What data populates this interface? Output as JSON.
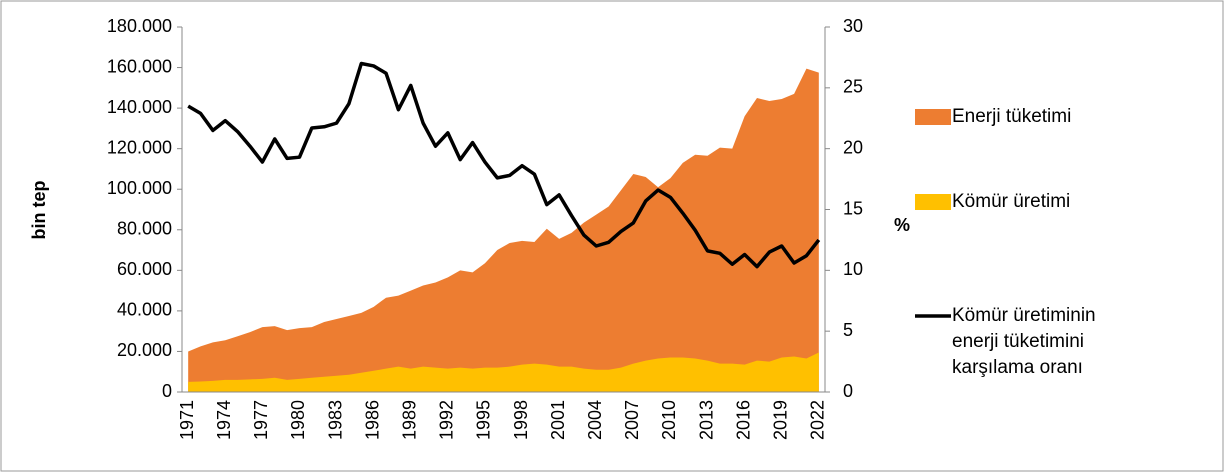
{
  "chart_data": {
    "type": "area-line",
    "ylabel": "bin tep",
    "y2label": "%",
    "categories": [
      "1971",
      null,
      null,
      "1974",
      null,
      null,
      "1977",
      null,
      null,
      "1980",
      null,
      null,
      "1983",
      null,
      null,
      "1986",
      null,
      null,
      "1989",
      null,
      null,
      "1992",
      null,
      null,
      "1995",
      null,
      null,
      "1998",
      null,
      null,
      "2001",
      null,
      null,
      "2004",
      null,
      null,
      "2007",
      null,
      null,
      "2010",
      null,
      null,
      "2013",
      null,
      null,
      "2016",
      null,
      null,
      "2019",
      null,
      null,
      "2022"
    ],
    "series": [
      {
        "name": "Enerji tüketimi",
        "type": "area",
        "color": "#ed7d31",
        "values": [
          20000,
          22500,
          24500,
          25500,
          27500,
          29500,
          32000,
          32500,
          30500,
          31500,
          32000,
          34500,
          36000,
          37500,
          39000,
          42000,
          46500,
          47500,
          50000,
          52500,
          54000,
          56500,
          60000,
          59000,
          63500,
          70000,
          73500,
          74500,
          74000,
          80500,
          75500,
          78500,
          83500,
          87500,
          91500,
          99500,
          107500,
          106000,
          101000,
          105500,
          113000,
          117000,
          116500,
          120500,
          120000,
          136000,
          145000,
          143500,
          144500,
          147000,
          159500,
          157500
        ]
      },
      {
        "name": "Kömür üretimi",
        "type": "area",
        "color": "#ffc000",
        "values": [
          5000,
          5200,
          5500,
          6000,
          6000,
          6200,
          6500,
          7000,
          6000,
          6500,
          7000,
          7500,
          8000,
          8500,
          9500,
          10500,
          11500,
          12500,
          11500,
          12500,
          12000,
          11500,
          12000,
          11500,
          12000,
          12000,
          12500,
          13500,
          14000,
          13500,
          12500,
          12500,
          11500,
          11000,
          11000,
          12000,
          14000,
          15500,
          16500,
          17000,
          17000,
          16500,
          15500,
          14000,
          14000,
          13500,
          15500,
          15000,
          17000,
          17500,
          16500,
          19500
        ]
      },
      {
        "name": "Kömür üretiminin enerji tüketimini karşılama oranı",
        "type": "line",
        "axis": "y2",
        "color": "#000000",
        "values": [
          23.5,
          22.9,
          21.5,
          22.3,
          21.4,
          20.2,
          18.9,
          20.8,
          19.2,
          19.3,
          21.7,
          21.8,
          22.1,
          23.7,
          27.0,
          26.8,
          26.2,
          23.2,
          25.2,
          22.1,
          20.2,
          21.3,
          19.1,
          20.5,
          18.9,
          17.6,
          17.8,
          18.6,
          17.9,
          15.4,
          16.2,
          14.5,
          12.9,
          12.0,
          12.3,
          13.2,
          13.9,
          15.7,
          16.6,
          16.0,
          14.7,
          13.3,
          11.6,
          11.4,
          10.5,
          11.3,
          10.3,
          11.5,
          12.0,
          10.6,
          11.2,
          12.5
        ]
      }
    ],
    "ylim": [
      0,
      180000
    ],
    "yticks": [
      0,
      {
        "value": 20000,
        "label": "20.000"
      },
      {
        "value": 40000,
        "label": "40.000"
      },
      {
        "value": 60000,
        "label": "60.000"
      },
      {
        "value": 80000,
        "label": "80.000"
      },
      {
        "value": 100000,
        "label": "100.000"
      },
      {
        "value": 120000,
        "label": "120.000"
      },
      {
        "value": 140000,
        "label": "140.000"
      },
      {
        "value": 160000,
        "label": "160.000"
      },
      {
        "value": 180000,
        "label": "180.000"
      }
    ],
    "y2lim": [
      0,
      30
    ],
    "y2ticks": [
      0,
      5,
      10,
      15,
      20,
      25,
      30
    ],
    "legend": "right"
  }
}
